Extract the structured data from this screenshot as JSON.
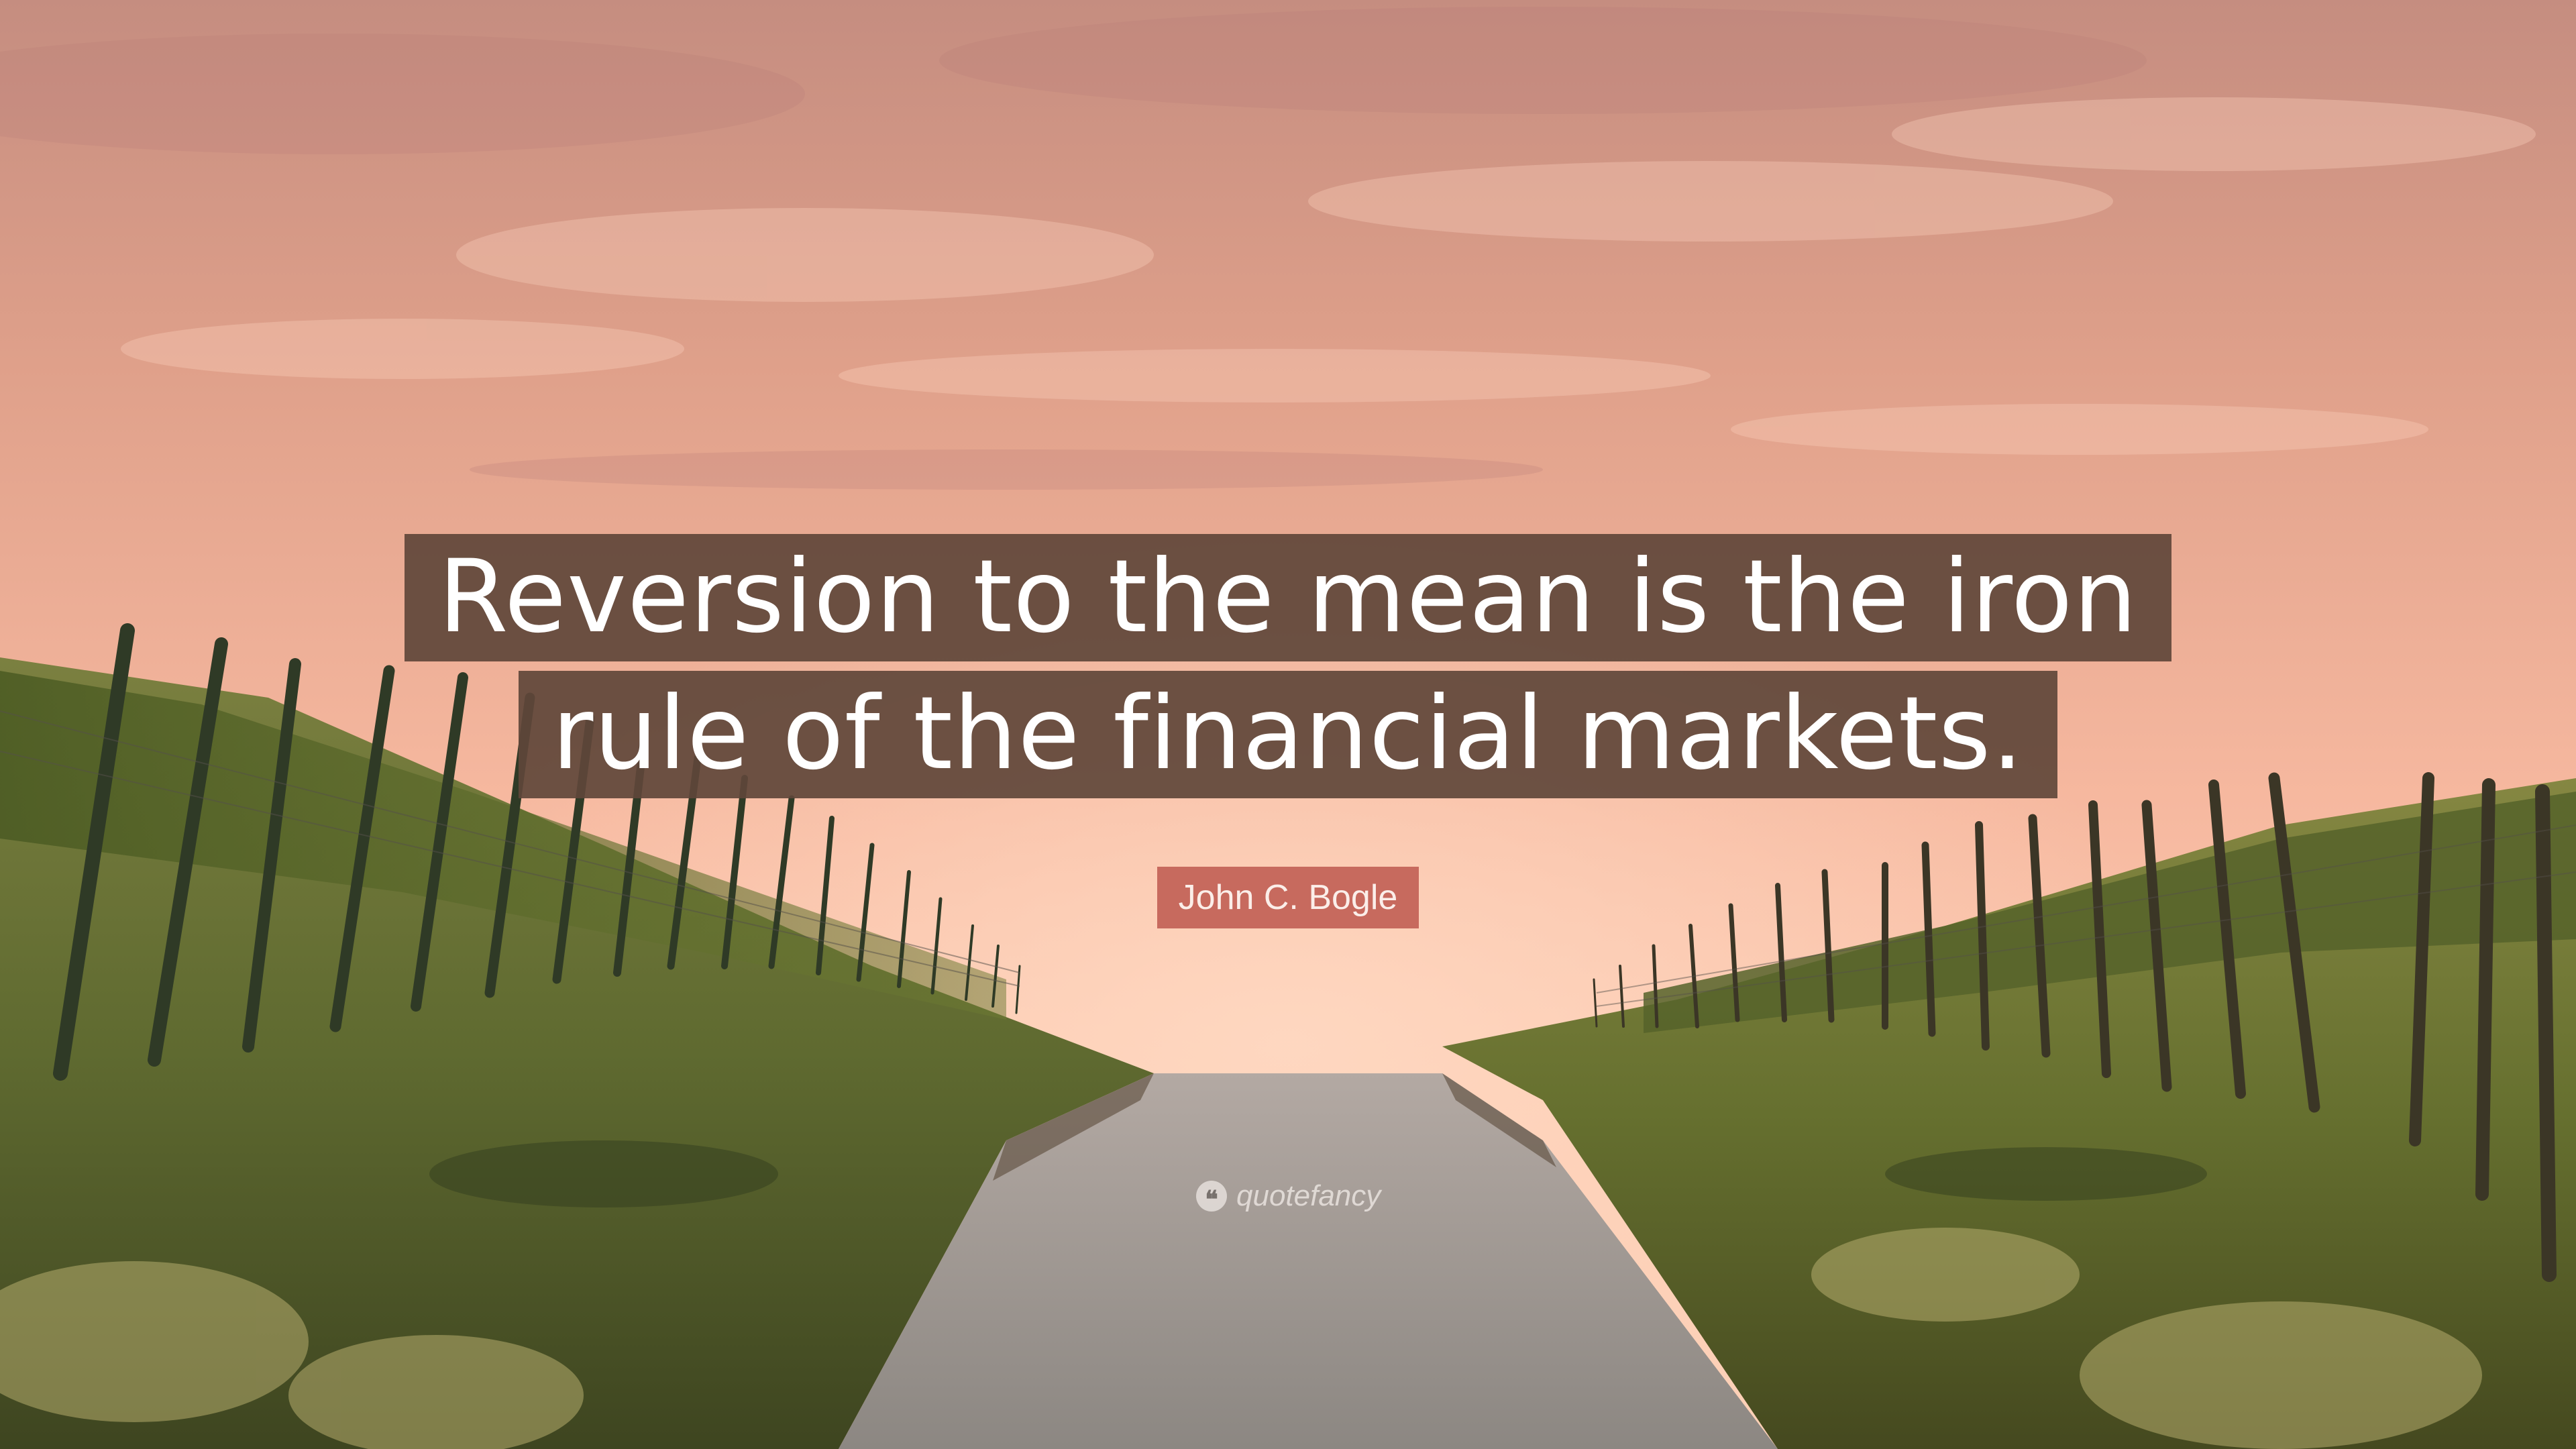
{
  "quote": {
    "lines": [
      "Reversion to the mean is the iron",
      "rule of the financial markets."
    ]
  },
  "author": "John C. Bogle",
  "watermark": {
    "icon": "quote-mark-icon",
    "text": "quotefancy"
  },
  "colors": {
    "quote_box": "#60463a",
    "author_box": "#c76a5e",
    "sky_top": "#c98f7f",
    "sky_horizon": "#fbc7ad",
    "grass": "#6f7a3a",
    "road": "#9a948f"
  }
}
